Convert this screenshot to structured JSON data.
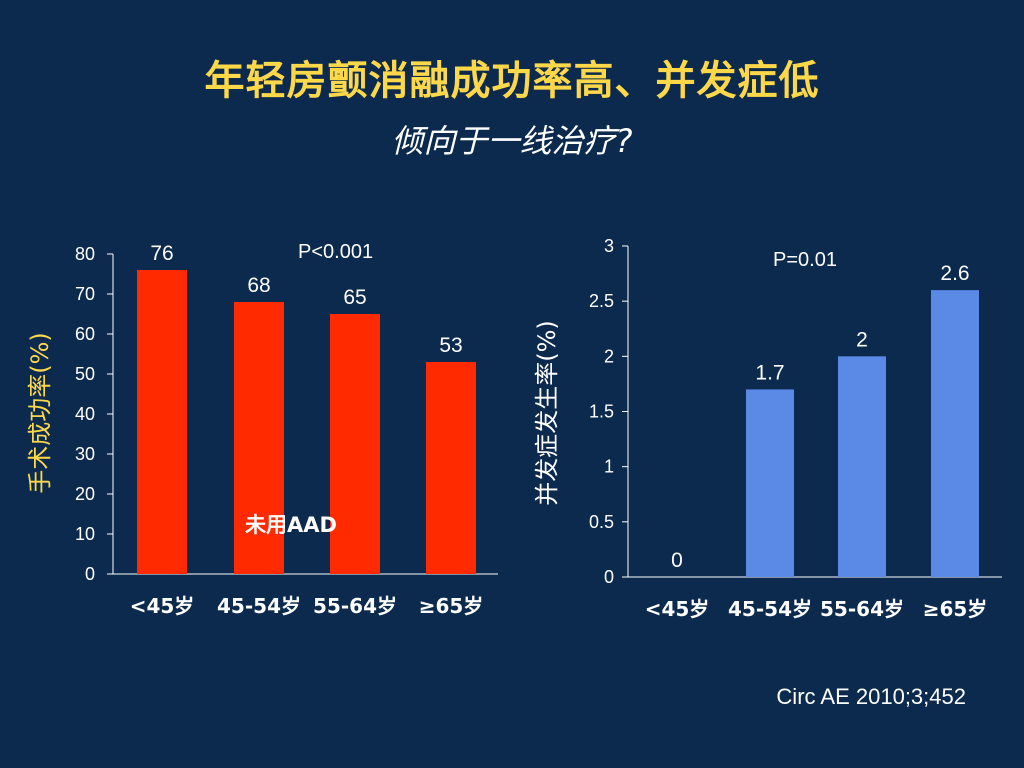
{
  "slide": {
    "title": "年轻房颤消融成功率高、并发症低",
    "subtitle": "倾向于一线治疗?",
    "citation": "Circ AE 2010;3;452"
  },
  "colors": {
    "background": "#0b2a4d",
    "title": "#ffd84a",
    "left_bars": "#ff2a00",
    "right_bars": "#5b8ae6"
  },
  "chart_data": [
    {
      "type": "bar",
      "categories": [
        "<45岁",
        "45-54岁",
        "55-64岁",
        "≥65岁"
      ],
      "values": [
        76,
        68,
        65,
        53
      ],
      "data_labels": [
        "76",
        "68",
        "65",
        "53"
      ],
      "ylabel": "手术成功率(%)",
      "ylim": [
        0,
        80
      ],
      "yticks": [
        "0",
        "10",
        "20",
        "30",
        "40",
        "50",
        "60",
        "70",
        "80"
      ],
      "annotations": [
        "P<0.001",
        "未用AAD"
      ],
      "grid": false
    },
    {
      "type": "bar",
      "categories": [
        "<45岁",
        "45-54岁",
        "55-64岁",
        "≥65岁"
      ],
      "values": [
        0,
        1.7,
        2,
        2.6
      ],
      "data_labels": [
        "0",
        "1.7",
        "2",
        "2.6"
      ],
      "ylabel": "并发症发生率(%)",
      "ylim": [
        0,
        3
      ],
      "yticks": [
        "0",
        "0.5",
        "1",
        "1.5",
        "2",
        "2.5",
        "3"
      ],
      "annotations": [
        "P=0.01"
      ],
      "grid": false
    }
  ]
}
